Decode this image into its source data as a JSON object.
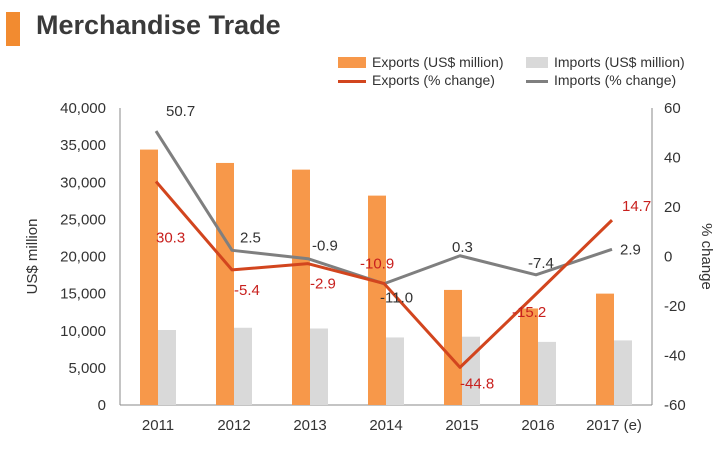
{
  "header": {
    "title": "Merchandise Trade"
  },
  "legend": {
    "exports_bar": "Exports (US$ million)",
    "imports_bar": "Imports (US$ million)",
    "exports_line": "Exports (% change)",
    "imports_line": "Imports (% change)"
  },
  "colors": {
    "accent": "#F28B30",
    "exports_bar": "#F7984A",
    "imports_bar": "#D9D9D9",
    "exports_line": "#D2451E",
    "imports_line": "#7F7F7F",
    "label_red": "#C8201E"
  },
  "chart_data": {
    "type": "bar+line",
    "title": "Merchandise Trade",
    "categories": [
      "2011",
      "2012",
      "2013",
      "2014",
      "2015",
      "2016",
      "2017 (e)"
    ],
    "ylabel": "US$ million",
    "y2label": "% change",
    "ylim": [
      0,
      40000
    ],
    "y2lim": [
      -60,
      60
    ],
    "yticks": [
      "0",
      "5,000",
      "10,000",
      "15,000",
      "20,000",
      "25,000",
      "30,000",
      "35,000",
      "40,000"
    ],
    "y2ticks": [
      "-60",
      "-40",
      "-20",
      "0",
      "20",
      "40",
      "60"
    ],
    "grid": false,
    "legend_position": "top-right",
    "series": [
      {
        "name": "Exports (US$ million)",
        "kind": "bar",
        "axis": "left",
        "values": [
          34400,
          32600,
          31700,
          28200,
          15500,
          13000,
          15000
        ]
      },
      {
        "name": "Imports (US$ million)",
        "kind": "bar",
        "axis": "left",
        "values": [
          10100,
          10400,
          10300,
          9100,
          9200,
          8500,
          8700
        ]
      },
      {
        "name": "Exports (% change)",
        "kind": "line",
        "axis": "right",
        "values": [
          30.3,
          -5.4,
          -2.9,
          -10.9,
          -44.8,
          -15.2,
          14.7
        ],
        "labels": [
          "30.3",
          "-5.4",
          "-2.9",
          "-10.9",
          "-44.8",
          "-15.2",
          "14.7"
        ]
      },
      {
        "name": "Imports (% change)",
        "kind": "line",
        "axis": "right",
        "values": [
          50.7,
          2.5,
          -0.9,
          -11.0,
          0.3,
          -7.4,
          2.9
        ],
        "labels": [
          "50.7",
          "2.5",
          "-0.9",
          "-11.0",
          "0.3",
          "-7.4",
          "2.9"
        ]
      }
    ]
  }
}
